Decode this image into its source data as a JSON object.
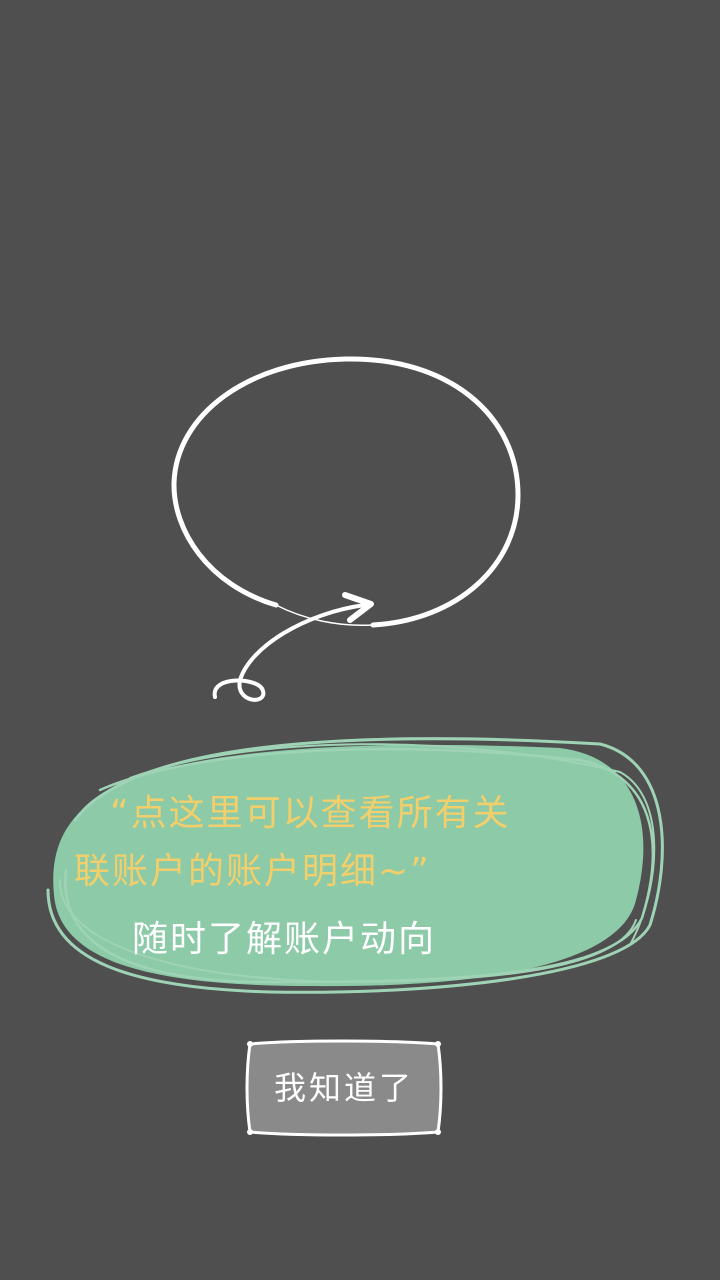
{
  "guide": {
    "tip_line_1": "“点这里可以查看所有关",
    "tip_line_2": "联账户的账户明细~”",
    "tip_line_3": "随时了解账户动向",
    "ok_button_label": "我知道了"
  },
  "colors": {
    "overlay": "#4f4f4f",
    "bubble_fill": "#8ccaa8",
    "bubble_stroke": "#9fd3b6",
    "tip_yellow": "#f2cf6b",
    "button_fill": "#8a8a8a",
    "white": "#ffffff"
  },
  "icons": {
    "highlight": "hand-drawn-ellipse-icon",
    "pointer": "curved-arrow-icon",
    "bubble": "speech-bubble-icon"
  }
}
